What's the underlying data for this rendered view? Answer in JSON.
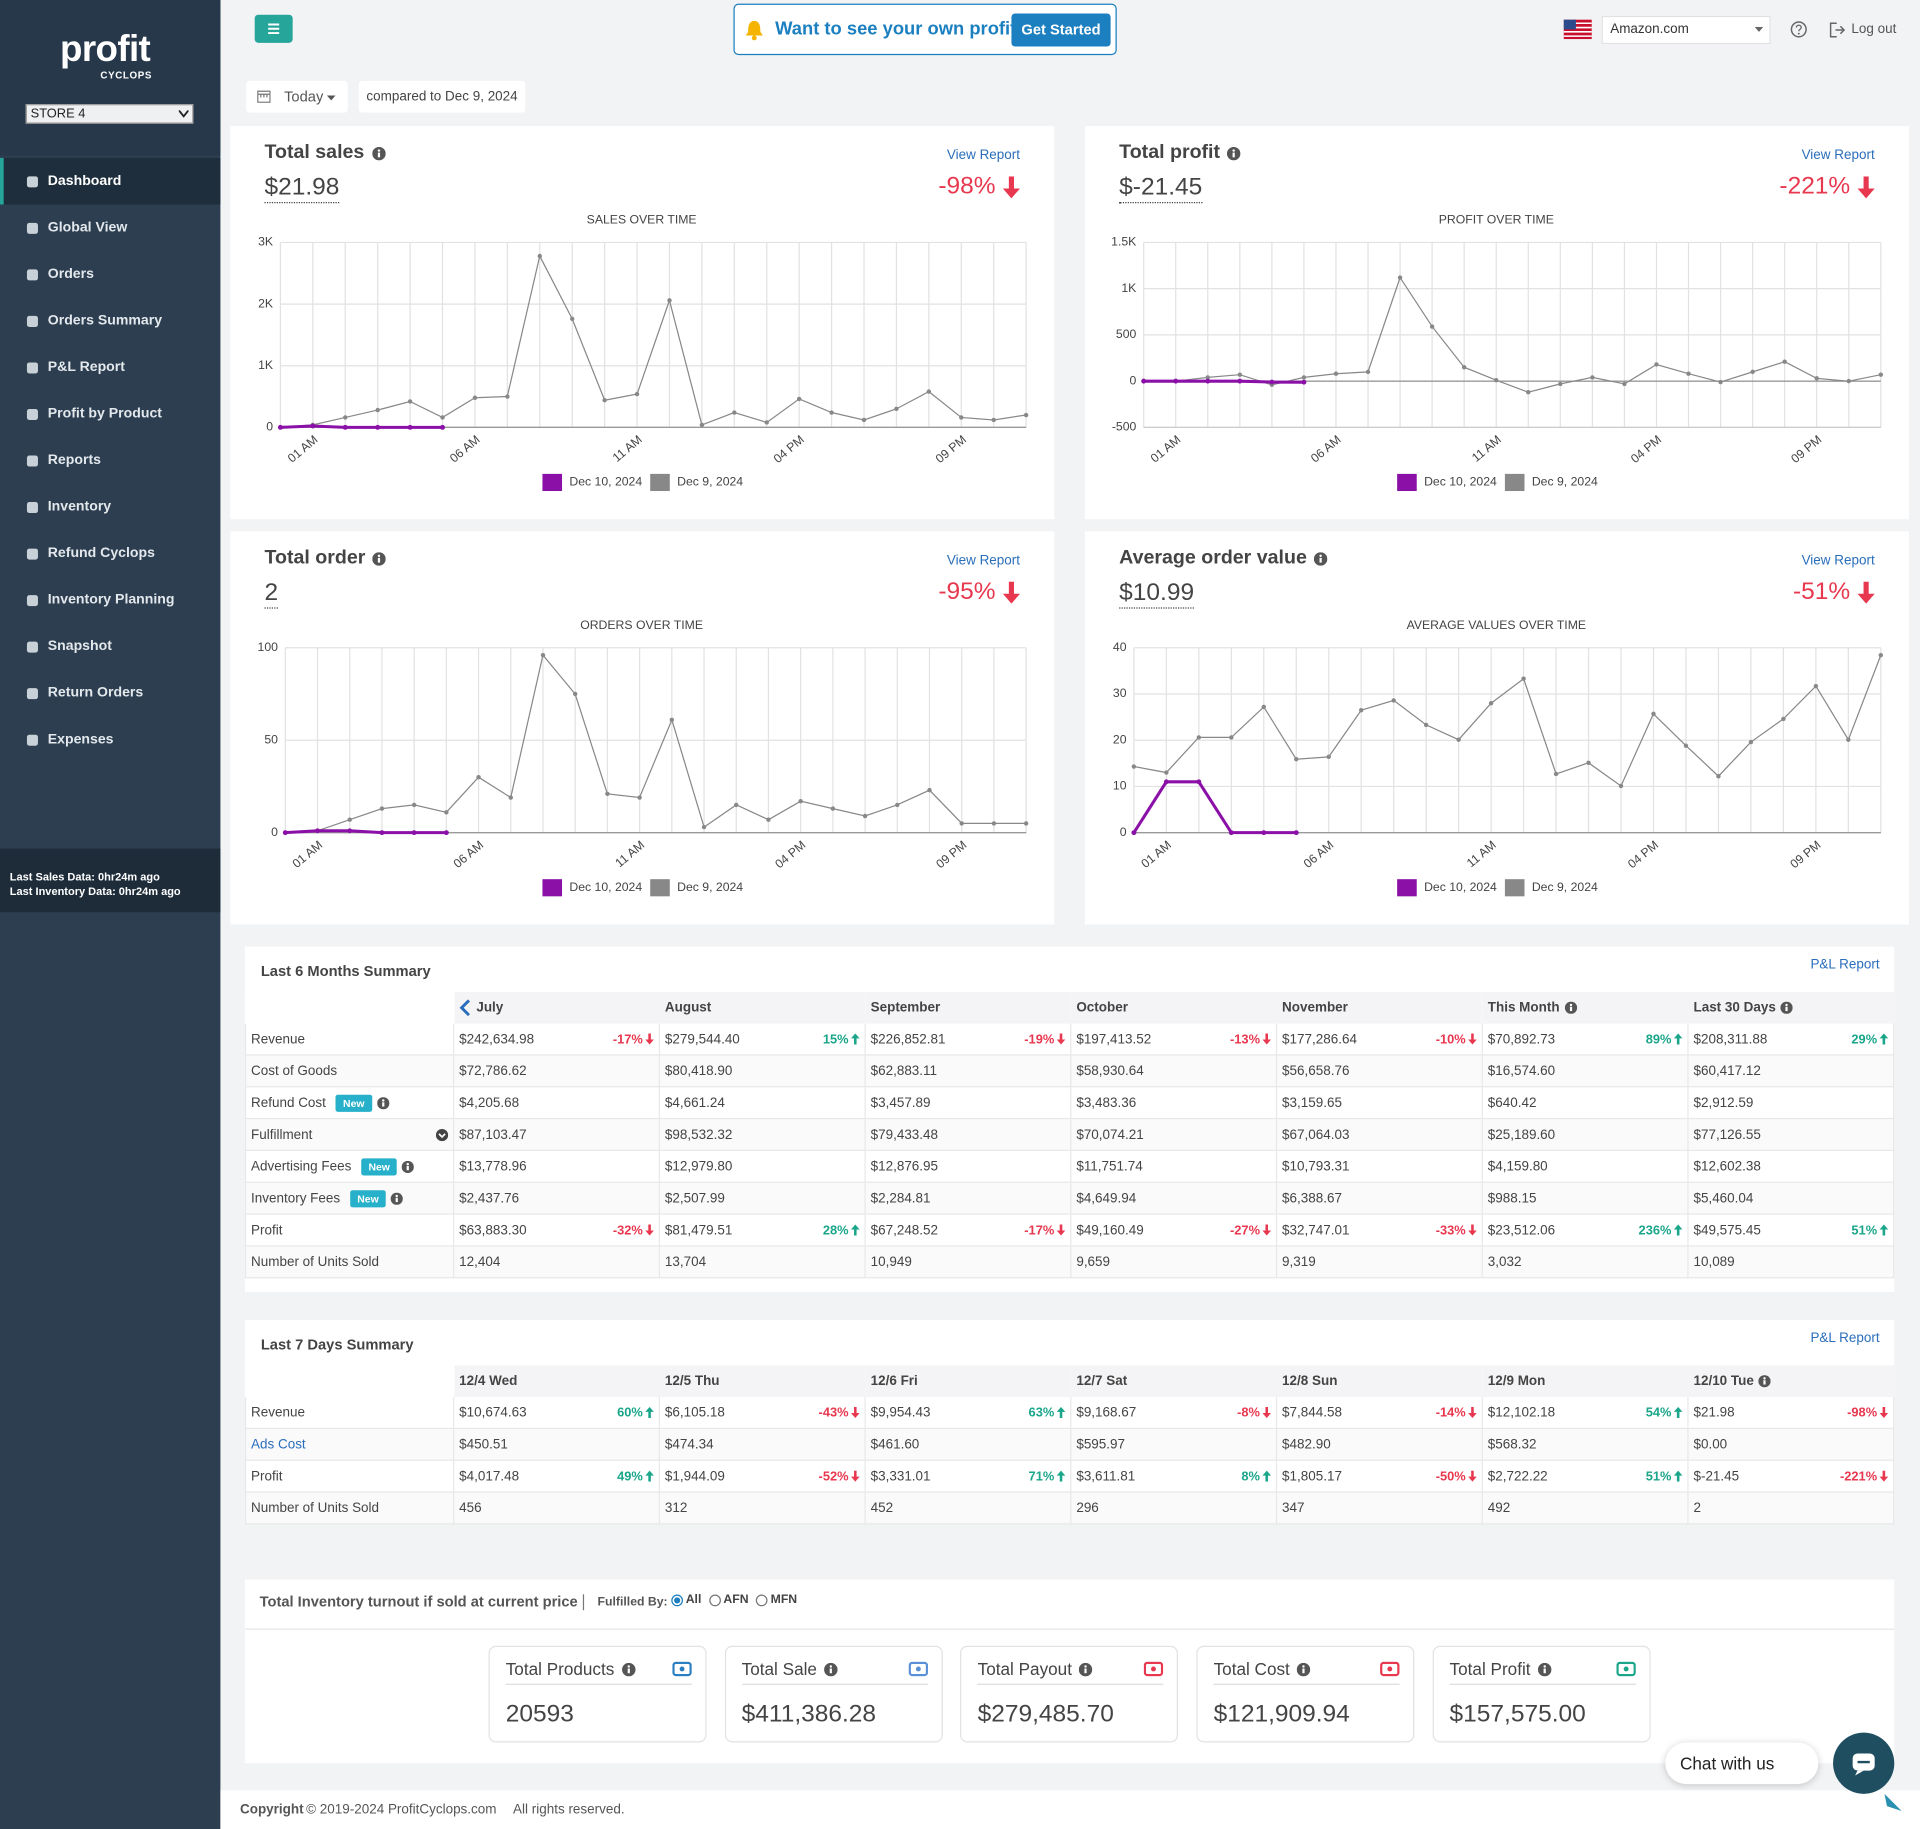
{
  "sidebar": {
    "logo": "profit",
    "logo_sub": "CYCLOPS",
    "store": "STORE 4",
    "nav": [
      "Dashboard",
      "Global View",
      "Orders",
      "Orders Summary",
      "P&L Report",
      "Profit by Product",
      "Reports",
      "Inventory",
      "Refund Cyclops",
      "Inventory Planning",
      "Snapshot",
      "Return Orders",
      "Expenses"
    ],
    "status": [
      "Last Sales Data: 0hr24m ago",
      "Last Inventory Data: 0hr24m ago"
    ]
  },
  "topbar": {
    "promo": "Want to see your own profit?",
    "button": "Get Started",
    "marketplace": "Amazon.com",
    "logout": "Log out"
  },
  "filters": {
    "period": "Today",
    "compare": "compared to Dec 9, 2024"
  },
  "cards": [
    {
      "title": "Total sales",
      "value": "$21.98",
      "link": "View Report",
      "change": "-98%"
    },
    {
      "title": "Total profit",
      "value": "$-21.45",
      "link": "View Report",
      "change": "-221%"
    },
    {
      "title": "Total order",
      "value": "2",
      "link": "View Report",
      "change": "-95%"
    },
    {
      "title": "Average order value",
      "value": "$10.99",
      "link": "View Report",
      "change": "-51%"
    }
  ],
  "chart_data": [
    {
      "type": "line",
      "title": "SALES OVER TIME",
      "categories": [
        null,
        "01 AM",
        null,
        null,
        null,
        null,
        "06 AM",
        null,
        null,
        null,
        null,
        "11 AM",
        null,
        null,
        null,
        null,
        "04 PM",
        null,
        null,
        null,
        null,
        "09 PM",
        null,
        null
      ],
      "series": [
        {
          "name": "Dec 10, 2024",
          "color": "#8b10a8",
          "values": [
            0,
            22,
            0,
            0,
            0,
            0,
            null,
            null,
            null,
            null,
            null,
            null,
            null,
            null,
            null,
            null,
            null,
            null,
            null,
            null,
            null,
            null,
            null,
            null
          ]
        },
        {
          "name": "Dec 9, 2024",
          "color": "#888888",
          "values": [
            0,
            40,
            160,
            280,
            420,
            160,
            480,
            500,
            2780,
            1760,
            440,
            540,
            2060,
            40,
            240,
            80,
            460,
            240,
            120,
            300,
            580,
            160,
            120,
            200
          ]
        }
      ],
      "ylim": [
        0,
        3000
      ],
      "yticks": [
        0,
        {
          "value": 1000,
          "label": "1K"
        },
        {
          "value": 2000,
          "label": "2K"
        },
        {
          "value": 3000,
          "label": "3K"
        }
      ],
      "grid": true
    },
    {
      "type": "line",
      "title": "PROFIT OVER TIME",
      "categories": [
        null,
        "01 AM",
        null,
        null,
        null,
        null,
        "06 AM",
        null,
        null,
        null,
        null,
        "11 AM",
        null,
        null,
        null,
        null,
        "04 PM",
        null,
        null,
        null,
        null,
        "09 PM",
        null,
        null
      ],
      "series": [
        {
          "name": "Dec 10, 2024",
          "color": "#8b10a8",
          "values": [
            0,
            0,
            0,
            0,
            -10,
            -11,
            null,
            null,
            null,
            null,
            null,
            null,
            null,
            null,
            null,
            null,
            null,
            null,
            null,
            null,
            null,
            null,
            null,
            null
          ]
        },
        {
          "name": "Dec 9, 2024",
          "color": "#888888",
          "values": [
            0,
            0,
            40,
            70,
            -40,
            40,
            80,
            100,
            1120,
            590,
            150,
            10,
            -120,
            -30,
            40,
            -30,
            180,
            80,
            -10,
            100,
            210,
            30,
            0,
            70
          ]
        }
      ],
      "ylim": [
        -500,
        1500
      ],
      "yticks": [
        -500,
        0,
        500,
        {
          "value": 1000,
          "label": "1K"
        },
        {
          "value": 1500,
          "label": "1.5K"
        }
      ],
      "grid": true
    },
    {
      "type": "line",
      "title": "ORDERS OVER TIME",
      "categories": [
        null,
        "01 AM",
        null,
        null,
        null,
        null,
        "06 AM",
        null,
        null,
        null,
        null,
        "11 AM",
        null,
        null,
        null,
        null,
        "04 PM",
        null,
        null,
        null,
        null,
        "09 PM",
        null,
        null
      ],
      "series": [
        {
          "name": "Dec 10, 2024",
          "color": "#8b10a8",
          "values": [
            0,
            1,
            1,
            0,
            0,
            0,
            null,
            null,
            null,
            null,
            null,
            null,
            null,
            null,
            null,
            null,
            null,
            null,
            null,
            null,
            null,
            null,
            null,
            null
          ]
        },
        {
          "name": "Dec 9, 2024",
          "color": "#888888",
          "values": [
            0,
            1,
            7,
            13,
            15,
            11,
            30,
            19,
            96,
            75,
            21,
            19,
            61,
            3,
            15,
            7,
            17,
            13,
            9,
            15,
            23,
            5,
            5,
            5
          ]
        }
      ],
      "ylim": [
        0,
        100
      ],
      "yticks": [
        0,
        50,
        100
      ],
      "grid": true
    },
    {
      "type": "line",
      "title": "AVERAGE VALUES OVER TIME",
      "categories": [
        null,
        "01 AM",
        null,
        null,
        null,
        null,
        "06 AM",
        null,
        null,
        null,
        null,
        "11 AM",
        null,
        null,
        null,
        null,
        "04 PM",
        null,
        null,
        null,
        null,
        "09 PM",
        null,
        null
      ],
      "series": [
        {
          "name": "Dec 10, 2024",
          "color": "#8b10a8",
          "values": [
            0,
            11,
            11,
            0,
            0,
            0,
            null,
            null,
            null,
            null,
            null,
            null,
            null,
            null,
            null,
            null,
            null,
            null,
            null,
            null,
            null,
            null,
            null,
            null
          ]
        },
        {
          "name": "Dec 9, 2024",
          "color": "#888888",
          "values": [
            14.3,
            13,
            20.6,
            20.6,
            27.2,
            15.9,
            16.4,
            26.5,
            28.6,
            23.3,
            20.1,
            28,
            33.3,
            12.7,
            15.1,
            10.1,
            25.7,
            18.8,
            12.2,
            19.6,
            24.6,
            31.7,
            20.1,
            38.4
          ]
        }
      ],
      "ylim": [
        0,
        40
      ],
      "yticks": [
        0,
        10,
        20,
        30,
        40
      ],
      "grid": true
    }
  ],
  "summary_6m": {
    "title": "Last 6 Months Summary",
    "link": "P&L Report",
    "nav_arrow": true,
    "columns": [
      {
        "label": "July"
      },
      {
        "label": "August"
      },
      {
        "label": "September"
      },
      {
        "label": "October"
      },
      {
        "label": "November"
      },
      {
        "label": "This Month",
        "info": true
      },
      {
        "label": "Last 30 Days",
        "info": true
      }
    ],
    "rows": [
      {
        "label": "Revenue",
        "cells": [
          {
            "value": "$242,634.98",
            "change": "-17%"
          },
          {
            "value": "$279,544.40",
            "change": "15%"
          },
          {
            "value": "$226,852.81",
            "change": "-19%"
          },
          {
            "value": "$197,413.52",
            "change": "-13%"
          },
          {
            "value": "$177,286.64",
            "change": "-10%"
          },
          {
            "value": "$70,892.73",
            "change": "89%"
          },
          {
            "value": "$208,311.88",
            "change": "29%"
          }
        ]
      },
      {
        "label": "Cost of Goods",
        "cells": [
          {
            "value": "$72,786.62"
          },
          {
            "value": "$80,418.90"
          },
          {
            "value": "$62,883.11"
          },
          {
            "value": "$58,930.64"
          },
          {
            "value": "$56,658.76"
          },
          {
            "value": "$16,574.60"
          },
          {
            "value": "$60,417.12"
          }
        ]
      },
      {
        "label": "Refund Cost",
        "badge": "New",
        "info": true,
        "cells": [
          {
            "value": "$4,205.68"
          },
          {
            "value": "$4,661.24"
          },
          {
            "value": "$3,457.89"
          },
          {
            "value": "$3,483.36"
          },
          {
            "value": "$3,159.65"
          },
          {
            "value": "$640.42"
          },
          {
            "value": "$2,912.59"
          }
        ]
      },
      {
        "label": "Fulfillment",
        "expand": true,
        "cells": [
          {
            "value": "$87,103.47"
          },
          {
            "value": "$98,532.32"
          },
          {
            "value": "$79,433.48"
          },
          {
            "value": "$70,074.21"
          },
          {
            "value": "$67,064.03"
          },
          {
            "value": "$25,189.60"
          },
          {
            "value": "$77,126.55"
          }
        ]
      },
      {
        "label": "Advertising Fees",
        "badge": "New",
        "info": true,
        "cells": [
          {
            "value": "$13,778.96"
          },
          {
            "value": "$12,979.80"
          },
          {
            "value": "$12,876.95"
          },
          {
            "value": "$11,751.74"
          },
          {
            "value": "$10,793.31"
          },
          {
            "value": "$4,159.80"
          },
          {
            "value": "$12,602.38"
          }
        ]
      },
      {
        "label": "Inventory Fees",
        "badge": "New",
        "info": true,
        "cells": [
          {
            "value": "$2,437.76"
          },
          {
            "value": "$2,507.99"
          },
          {
            "value": "$2,284.81"
          },
          {
            "value": "$4,649.94"
          },
          {
            "value": "$6,388.67"
          },
          {
            "value": "$988.15"
          },
          {
            "value": "$5,460.04"
          }
        ]
      },
      {
        "label": "Profit",
        "cells": [
          {
            "value": "$63,883.30",
            "change": "-32%"
          },
          {
            "value": "$81,479.51",
            "change": "28%"
          },
          {
            "value": "$67,248.52",
            "change": "-17%"
          },
          {
            "value": "$49,160.49",
            "change": "-27%"
          },
          {
            "value": "$32,747.01",
            "change": "-33%"
          },
          {
            "value": "$23,512.06",
            "change": "236%"
          },
          {
            "value": "$49,575.45",
            "change": "51%"
          }
        ]
      },
      {
        "label": "Number of Units Sold",
        "cells": [
          {
            "value": "12,404"
          },
          {
            "value": "13,704"
          },
          {
            "value": "10,949"
          },
          {
            "value": "9,659"
          },
          {
            "value": "9,319"
          },
          {
            "value": "3,032"
          },
          {
            "value": "10,089"
          }
        ]
      }
    ]
  },
  "summary_7d": {
    "title": "Last 7 Days Summary",
    "link": "P&L Report",
    "columns": [
      {
        "label": "12/4 Wed"
      },
      {
        "label": "12/5 Thu"
      },
      {
        "label": "12/6 Fri"
      },
      {
        "label": "12/7 Sat"
      },
      {
        "label": "12/8 Sun"
      },
      {
        "label": "12/9 Mon"
      },
      {
        "label": "12/10 Tue",
        "info": true
      }
    ],
    "rows": [
      {
        "label": "Revenue",
        "cells": [
          {
            "value": "$10,674.63",
            "change": "60%"
          },
          {
            "value": "$6,105.18",
            "change": "-43%"
          },
          {
            "value": "$9,954.43",
            "change": "63%"
          },
          {
            "value": "$9,168.67",
            "change": "-8%"
          },
          {
            "value": "$7,844.58",
            "change": "-14%"
          },
          {
            "value": "$12,102.18",
            "change": "54%"
          },
          {
            "value": "$21.98",
            "change": "-98%"
          }
        ]
      },
      {
        "label": "Ads Cost",
        "link": true,
        "cells": [
          {
            "value": "$450.51"
          },
          {
            "value": "$474.34"
          },
          {
            "value": "$461.60"
          },
          {
            "value": "$595.97"
          },
          {
            "value": "$482.90"
          },
          {
            "value": "$568.32"
          },
          {
            "value": "$0.00"
          }
        ]
      },
      {
        "label": "Profit",
        "cells": [
          {
            "value": "$4,017.48",
            "change": "49%"
          },
          {
            "value": "$1,944.09",
            "change": "-52%"
          },
          {
            "value": "$3,331.01",
            "change": "71%"
          },
          {
            "value": "$3,611.81",
            "change": "8%"
          },
          {
            "value": "$1,805.17",
            "change": "-50%"
          },
          {
            "value": "$2,722.22",
            "change": "51%"
          },
          {
            "value": "$-21.45",
            "change": "-221%"
          }
        ]
      },
      {
        "label": "Number of Units Sold",
        "cells": [
          {
            "value": "456"
          },
          {
            "value": "312"
          },
          {
            "value": "452"
          },
          {
            "value": "296"
          },
          {
            "value": "347"
          },
          {
            "value": "492"
          },
          {
            "value": "2"
          }
        ]
      }
    ]
  },
  "inventory": {
    "title": "Total Inventory turnout if sold at current price",
    "fulfilled_label": "Fulfilled By:",
    "options": [
      "All",
      "AFN",
      "MFN"
    ],
    "selected": 0,
    "boxes": [
      {
        "title": "Total Products",
        "value": "20593",
        "color": "#2a7fc1"
      },
      {
        "title": "Total Sale",
        "value": "$411,386.28",
        "color": "#5b8fd6"
      },
      {
        "title": "Total Payout",
        "value": "$279,485.70",
        "color": "#e8384f"
      },
      {
        "title": "Total Cost",
        "value": "$121,909.94",
        "color": "#e8384f"
      },
      {
        "title": "Total Profit",
        "value": "$157,575.00",
        "color": "#1aa68a"
      }
    ]
  },
  "footer": {
    "label": "Copyright",
    "text": "© 2019-2024 ProfitCyclops.com",
    "rights": "All rights reserved."
  },
  "chat": "Chat with us"
}
